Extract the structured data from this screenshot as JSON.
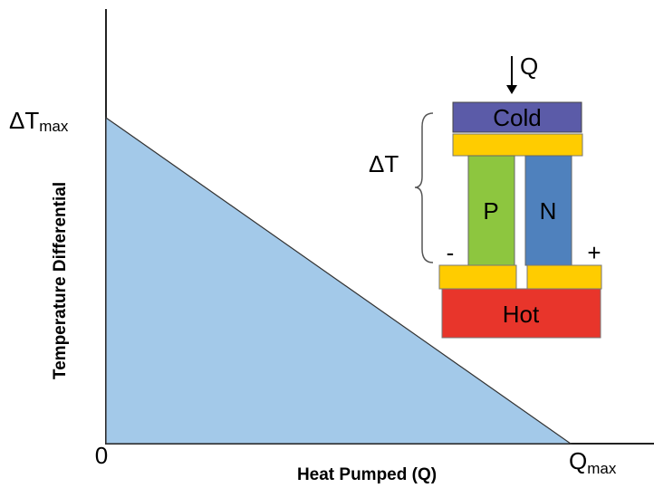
{
  "graph": {
    "y_max_label": {
      "main": "ΔT",
      "sub": "max"
    },
    "origin_label": "0",
    "x_max_label": {
      "main": "Q",
      "sub": "max"
    },
    "x_axis_title": "Heat Pumped (Q)",
    "y_axis_title": "Temperature Differential"
  },
  "module": {
    "heat_label": "Q",
    "cold_label": "Cold",
    "delta_label": "ΔT",
    "p_label": "P",
    "n_label": "N",
    "minus_label": "-",
    "plus_label": "+",
    "hot_label": "Hot"
  }
}
